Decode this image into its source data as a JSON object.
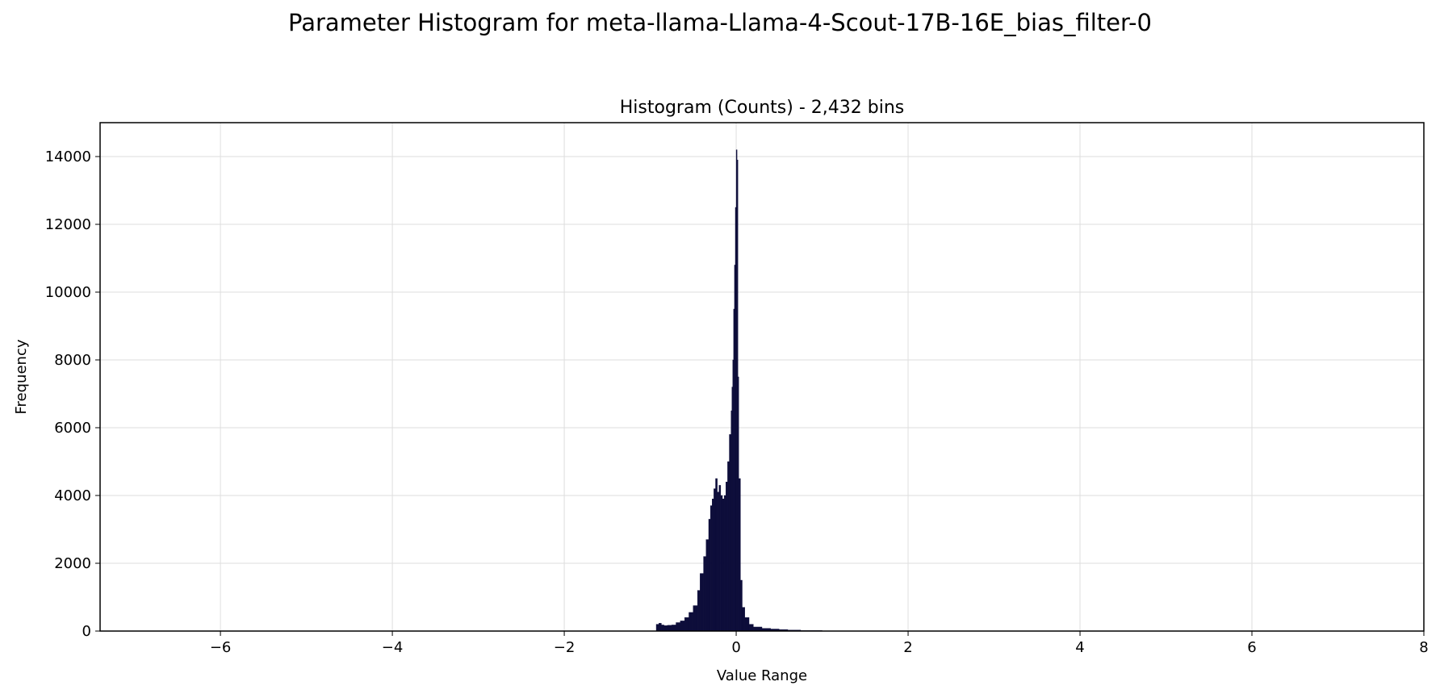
{
  "suptitle": "Parameter Histogram for meta-llama-Llama-4-Scout-17B-16E_bias_filter-0",
  "chart_data": {
    "type": "bar",
    "title": "Histogram (Counts) - 2,432 bins",
    "xlabel": "Value Range",
    "ylabel": "Frequency",
    "xlim": [
      -7.4,
      8
    ],
    "ylim": [
      0,
      15000
    ],
    "xticks": [
      -6,
      -4,
      -2,
      0,
      2,
      4,
      6,
      8
    ],
    "xtick_labels": [
      "−6",
      "−4",
      "−2",
      "0",
      "2",
      "4",
      "6",
      "8"
    ],
    "yticks": [
      0,
      2000,
      4000,
      6000,
      8000,
      10000,
      12000,
      14000
    ],
    "ytick_labels": [
      "0",
      "2000",
      "4000",
      "6000",
      "8000",
      "10000",
      "12000",
      "14000"
    ],
    "grid": true,
    "bar_color": "#0d0d3a",
    "x": [
      -0.93,
      -0.9,
      -0.87,
      -0.84,
      -0.8,
      -0.75,
      -0.7,
      -0.65,
      -0.6,
      -0.55,
      -0.5,
      -0.45,
      -0.42,
      -0.38,
      -0.35,
      -0.32,
      -0.3,
      -0.28,
      -0.26,
      -0.24,
      -0.22,
      -0.2,
      -0.18,
      -0.16,
      -0.14,
      -0.12,
      -0.1,
      -0.08,
      -0.06,
      -0.05,
      -0.04,
      -0.03,
      -0.02,
      -0.01,
      0.0,
      0.01,
      0.02,
      0.03,
      0.05,
      0.07,
      0.1,
      0.15,
      0.2,
      0.3,
      0.4,
      0.5,
      0.6,
      0.75,
      1.0
    ],
    "values": [
      200,
      230,
      180,
      160,
      170,
      180,
      250,
      300,
      400,
      550,
      750,
      1200,
      1700,
      2200,
      2700,
      3300,
      3700,
      3900,
      4200,
      4500,
      4100,
      4300,
      4000,
      3900,
      4000,
      4400,
      5000,
      5800,
      6500,
      7200,
      8000,
      9500,
      10800,
      12500,
      14200,
      13900,
      7500,
      4500,
      1500,
      700,
      400,
      200,
      120,
      80,
      60,
      45,
      30,
      15,
      5
    ]
  }
}
